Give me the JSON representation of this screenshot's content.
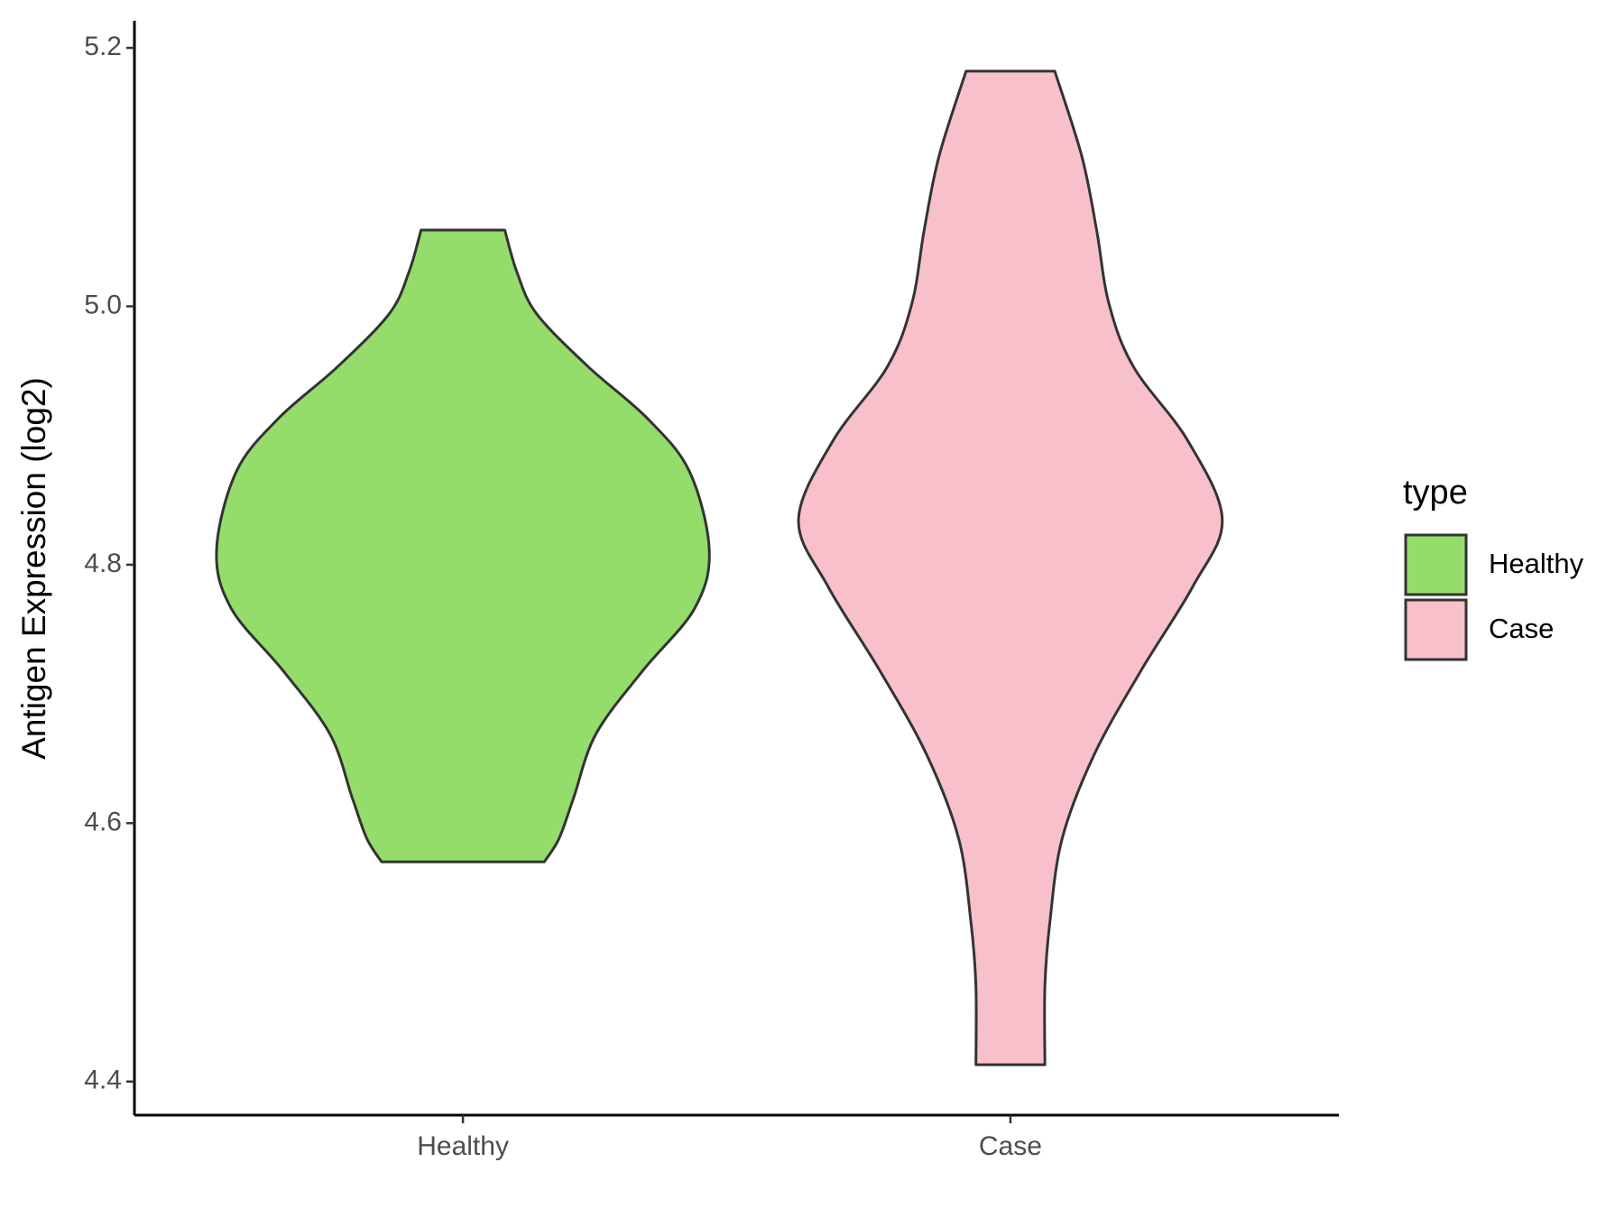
{
  "chart_data": {
    "type": "violin",
    "y_label": "Antigen Expression (log2)",
    "categories": [
      "Healthy",
      "Case"
    ],
    "legend_title": "type",
    "legend_position": "right",
    "ylim": [
      4.374,
      5.221
    ],
    "yticks": [
      4.4,
      4.6,
      4.8,
      {
        "value": 5,
        "label": "5.0"
      },
      5.2
    ],
    "series": [
      {
        "name": "Healthy",
        "color": "#95dd6b",
        "y": [
          5.059,
          5.026,
          4.994,
          4.953,
          4.913,
          4.872,
          4.811,
          4.766,
          4.718,
          4.669,
          4.62,
          4.588,
          4.57
        ],
        "density": [
          0.17,
          0.22,
          0.3,
          0.51,
          0.75,
          0.92,
          1.0,
          0.94,
          0.73,
          0.54,
          0.45,
          0.39,
          0.33
        ]
      },
      {
        "name": "Case",
        "color": "#f7c0cb",
        "y": [
          5.182,
          5.116,
          5.059,
          5.002,
          4.953,
          4.896,
          4.835,
          4.783,
          4.718,
          4.653,
          4.588,
          4.523,
          4.474,
          4.413
        ],
        "density": [
          0.18,
          0.29,
          0.35,
          0.4,
          0.5,
          0.72,
          0.86,
          0.74,
          0.53,
          0.34,
          0.21,
          0.16,
          0.14,
          0.14
        ]
      }
    ]
  }
}
